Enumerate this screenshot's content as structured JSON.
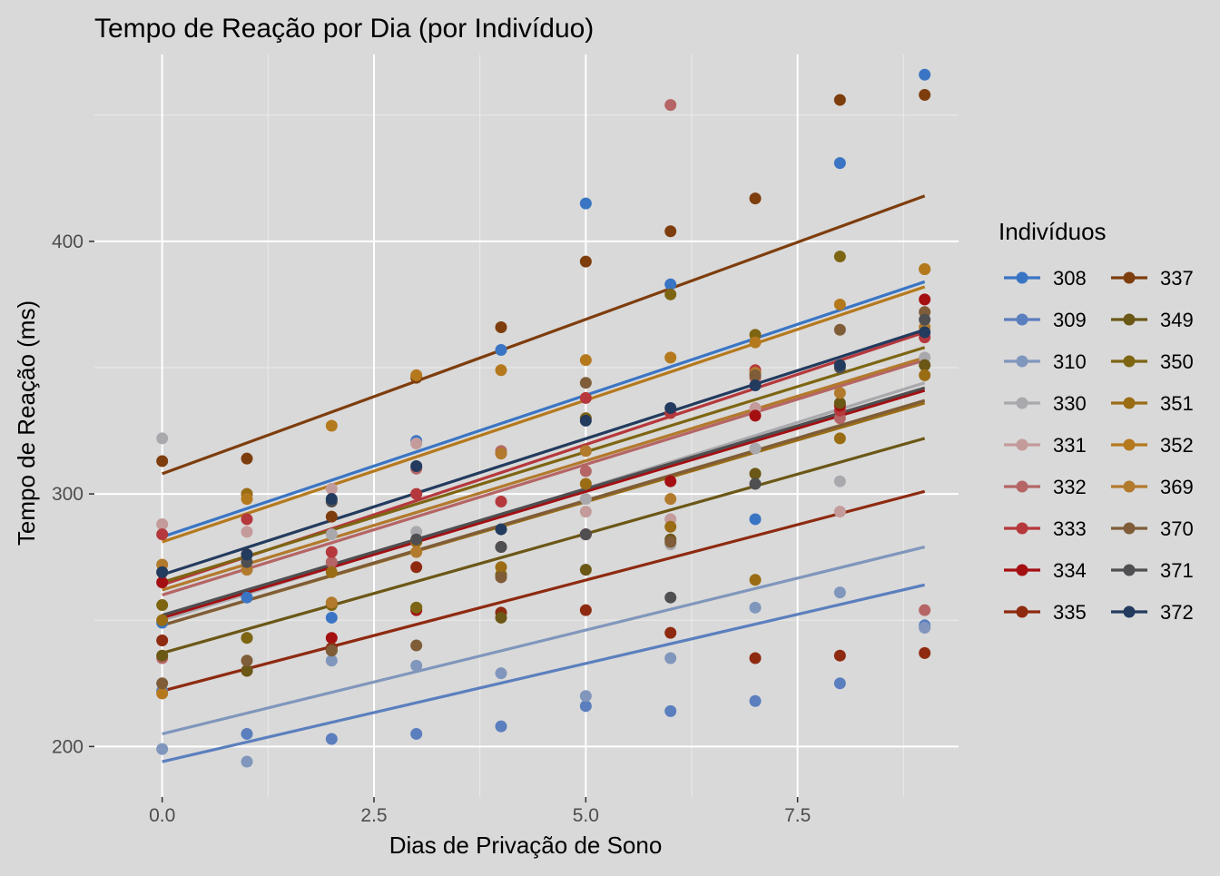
{
  "chart_data": {
    "type": "scatter",
    "title": "Tempo de Reação por Dia (por Indivíduo)",
    "xlabel": "Dias de Privação de Sono",
    "ylabel": "Tempo de Reação (ms)",
    "xlim": [
      -0.8,
      9.4
    ],
    "ylim": [
      180,
      474
    ],
    "x_ticks": [
      0.0,
      2.5,
      5.0,
      7.5
    ],
    "x_tick_labels": [
      "0.0",
      "2.5",
      "5.0",
      "7.5"
    ],
    "y_ticks": [
      200,
      300,
      400
    ],
    "y_tick_labels": [
      "200",
      "300",
      "400"
    ],
    "grid": true,
    "legend_title": "Indivíduos",
    "legend_position": "right",
    "legend_columns": 2,
    "x": [
      0,
      1,
      2,
      3,
      4,
      5,
      6,
      7,
      8,
      9
    ],
    "series": [
      {
        "name": "308",
        "color": "#3a75c4",
        "values": [
          249,
          259,
          251,
          321,
          357,
          415,
          383,
          290,
          431,
          466
        ],
        "fit": [
          283,
          384
        ]
      },
      {
        "name": "309",
        "color": "#5b7fbe",
        "values": [
          222,
          205,
          203,
          205,
          208,
          216,
          214,
          218,
          225,
          248
        ],
        "fit": [
          194,
          264
        ]
      },
      {
        "name": "310",
        "color": "#8096bc",
        "values": [
          199,
          194,
          234,
          232,
          229,
          220,
          235,
          255,
          261,
          247
        ],
        "fit": [
          205,
          279
        ]
      },
      {
        "name": "330",
        "color": "#a9a9ad",
        "values": [
          322,
          300,
          284,
          285,
          286,
          298,
          280,
          318,
          305,
          354
        ],
        "fit": [
          250,
          344
        ]
      },
      {
        "name": "331",
        "color": "#c49b9b",
        "values": [
          288,
          285,
          302,
          320,
          316,
          293,
          290,
          334,
          293,
          372
        ],
        "fit": [
          262,
          354
        ]
      },
      {
        "name": "332",
        "color": "#b56565",
        "values": [
          235,
          243,
          273,
          310,
          317,
          309,
          454,
          346,
          330,
          254
        ],
        "fit": [
          260,
          353
        ]
      },
      {
        "name": "333",
        "color": "#b5383c",
        "values": [
          284,
          290,
          277,
          300,
          297,
          338,
          332,
          349,
          333,
          362
        ],
        "fit": [
          264,
          364
        ]
      },
      {
        "name": "334",
        "color": "#a40f12",
        "values": [
          265,
          276,
          243,
          254,
          279,
          284,
          305,
          331,
          335,
          377
        ],
        "fit": [
          251,
          341
        ]
      },
      {
        "name": "335",
        "color": "#8e2a10",
        "values": [
          242,
          230,
          239,
          271,
          253,
          254,
          245,
          235,
          236,
          237
        ],
        "fit": [
          222,
          301
        ]
      },
      {
        "name": "337",
        "color": "#7e3d0d",
        "values": [
          313,
          314,
          291,
          346,
          366,
          392,
          404,
          417,
          456,
          458
        ],
        "fit": [
          308,
          418
        ]
      },
      {
        "name": "349",
        "color": "#6b5716",
        "values": [
          236,
          230,
          238,
          255,
          251,
          270,
          282,
          308,
          336,
          351
        ],
        "fit": [
          237,
          322
        ]
      },
      {
        "name": "350",
        "color": "#7d6512",
        "values": [
          256,
          243,
          256,
          255,
          268,
          330,
          379,
          363,
          394,
          389
        ],
        "fit": [
          265,
          358
        ]
      },
      {
        "name": "351",
        "color": "#9a6c14",
        "values": [
          250,
          300,
          269,
          281,
          271,
          304,
          287,
          266,
          322,
          347
        ],
        "fit": [
          248,
          336
        ]
      },
      {
        "name": "352",
        "color": "#b5791d",
        "values": [
          221,
          298,
          327,
          347,
          349,
          353,
          354,
          360,
          375,
          389
        ],
        "fit": [
          281,
          382
        ]
      },
      {
        "name": "369",
        "color": "#b27a2c",
        "values": [
          272,
          270,
          257,
          277,
          316,
          317,
          298,
          348,
          340,
          366
        ],
        "fit": [
          262,
          354
        ]
      },
      {
        "name": "370",
        "color": "#7f5d38",
        "values": [
          225,
          234,
          238,
          240,
          267,
          344,
          281,
          347,
          365,
          372
        ],
        "fit": [
          248,
          337
        ]
      },
      {
        "name": "371",
        "color": "#4f4f51",
        "values": [
          269,
          273,
          297,
          282,
          279,
          284,
          259,
          304,
          350,
          369
        ],
        "fit": [
          252,
          342
        ]
      },
      {
        "name": "372",
        "color": "#233b5e",
        "values": [
          269,
          276,
          298,
          311,
          286,
          329,
          334,
          343,
          351,
          364
        ],
        "fit": [
          268,
          365
        ]
      }
    ]
  }
}
